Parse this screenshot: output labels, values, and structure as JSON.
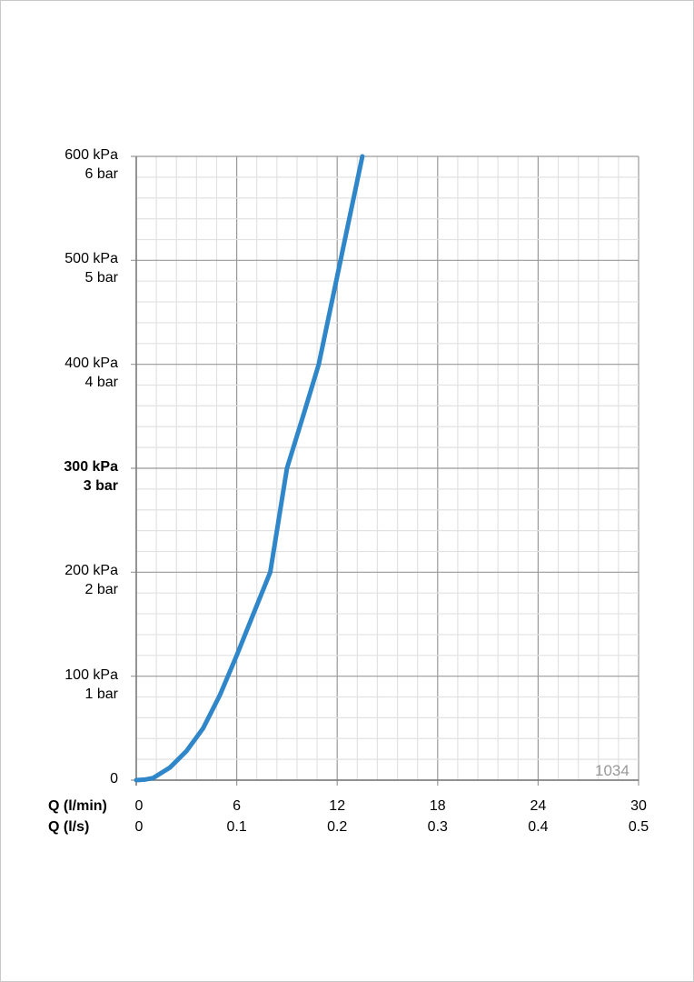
{
  "chart_data": {
    "type": "line",
    "x_rows": [
      {
        "label": "Q (l/min)",
        "ticks": [
          "0",
          "6",
          "12",
          "18",
          "24",
          "30"
        ]
      },
      {
        "label": "Q (l/s)",
        "ticks": [
          "0",
          "0.1",
          "0.2",
          "0.3",
          "0.4",
          "0.5"
        ]
      }
    ],
    "y_ticks": [
      {
        "value": 0,
        "lines": [
          "0"
        ],
        "bold": false
      },
      {
        "value": 100,
        "lines": [
          "100 kPa",
          "1 bar"
        ],
        "bold": false
      },
      {
        "value": 200,
        "lines": [
          "200 kPa",
          "2 bar"
        ],
        "bold": false
      },
      {
        "value": 300,
        "lines": [
          "300 kPa",
          "3 bar"
        ],
        "bold": true
      },
      {
        "value": 400,
        "lines": [
          "400 kPa",
          "4 bar"
        ],
        "bold": false
      },
      {
        "value": 500,
        "lines": [
          "500 kPa",
          "5 bar"
        ],
        "bold": false
      },
      {
        "value": 600,
        "lines": [
          "600 kPa",
          "6 bar"
        ],
        "bold": false
      }
    ],
    "xlim": [
      0,
      30
    ],
    "ylim": [
      0,
      600
    ],
    "x_unit": "l/min",
    "y_unit": "kPa",
    "grid": true,
    "minor_divisions": 5,
    "series": [
      {
        "color": "#2f86c8",
        "points": [
          [
            0,
            0
          ],
          [
            0.5,
            0.5
          ],
          [
            1,
            2
          ],
          [
            2,
            12
          ],
          [
            3,
            28
          ],
          [
            4,
            50
          ],
          [
            5,
            82
          ],
          [
            6,
            120
          ],
          [
            7,
            160
          ],
          [
            8,
            200
          ],
          [
            9,
            300
          ],
          [
            10,
            352
          ],
          [
            10.9,
            400
          ],
          [
            12.2,
            500
          ],
          [
            13.5,
            600
          ]
        ]
      }
    ]
  },
  "watermark": "1034"
}
